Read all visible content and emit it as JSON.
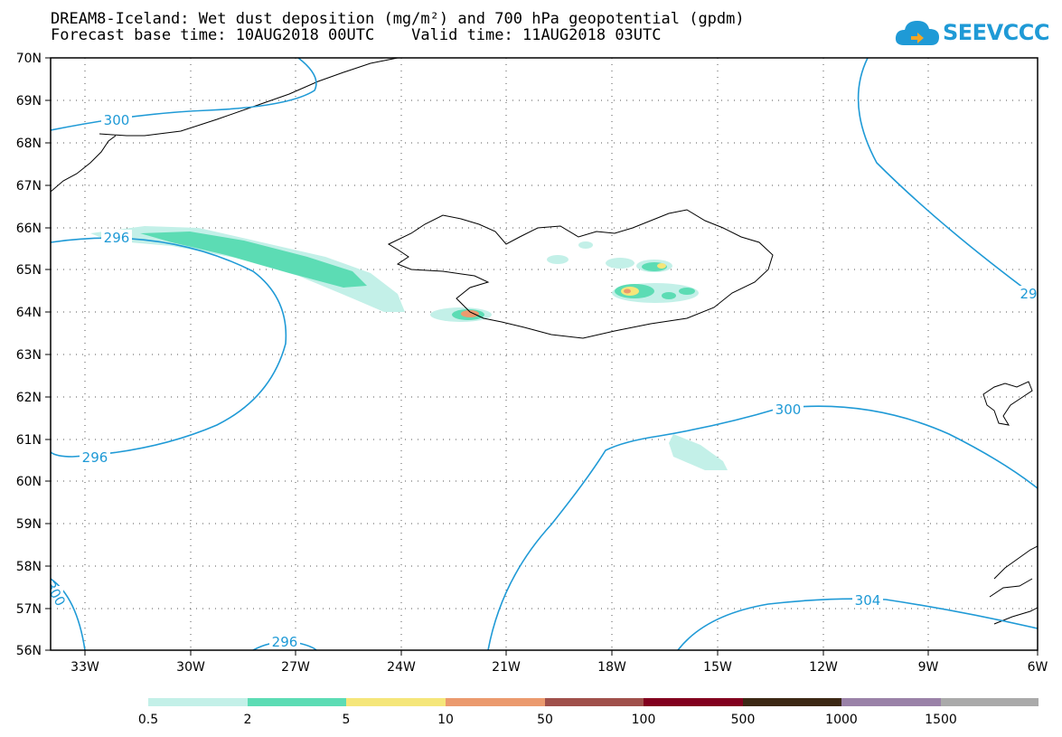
{
  "header": {
    "title_line1": "DREAM8-Iceland: Wet dust deposition (mg/m²) and 700 hPa geopotential (gpdm)",
    "title_line2": "Forecast base time: 10AUG2018 00UTC    Valid time: 11AUG2018 03UTC"
  },
  "logo": {
    "text": "SEEVCCC",
    "icon": "cloud-icon",
    "color": "#1f9ad6"
  },
  "map": {
    "lat_labels": [
      "70N",
      "69N",
      "68N",
      "67N",
      "66N",
      "65N",
      "64N",
      "63N",
      "62N",
      "61N",
      "60N",
      "59N",
      "58N",
      "57N",
      "56N"
    ],
    "lon_labels": [
      "33W",
      "30W",
      "27W",
      "24W",
      "21W",
      "18W",
      "15W",
      "12W",
      "9W",
      "6W"
    ],
    "contour_color": "#1f9ad6",
    "contour_labels": [
      "300",
      "296",
      "296",
      "296",
      "300",
      "304",
      "29",
      "300"
    ]
  },
  "legend": {
    "colors": [
      "#c3f0e8",
      "#5cdcb4",
      "#f5e67a",
      "#eb9a6e",
      "#a0504b",
      "#82001e",
      "#3c2814",
      "#9a82a8",
      "#aaaaaa"
    ],
    "labels": [
      "0.5",
      "2",
      "5",
      "10",
      "50",
      "100",
      "500",
      "1000",
      "1500"
    ]
  }
}
